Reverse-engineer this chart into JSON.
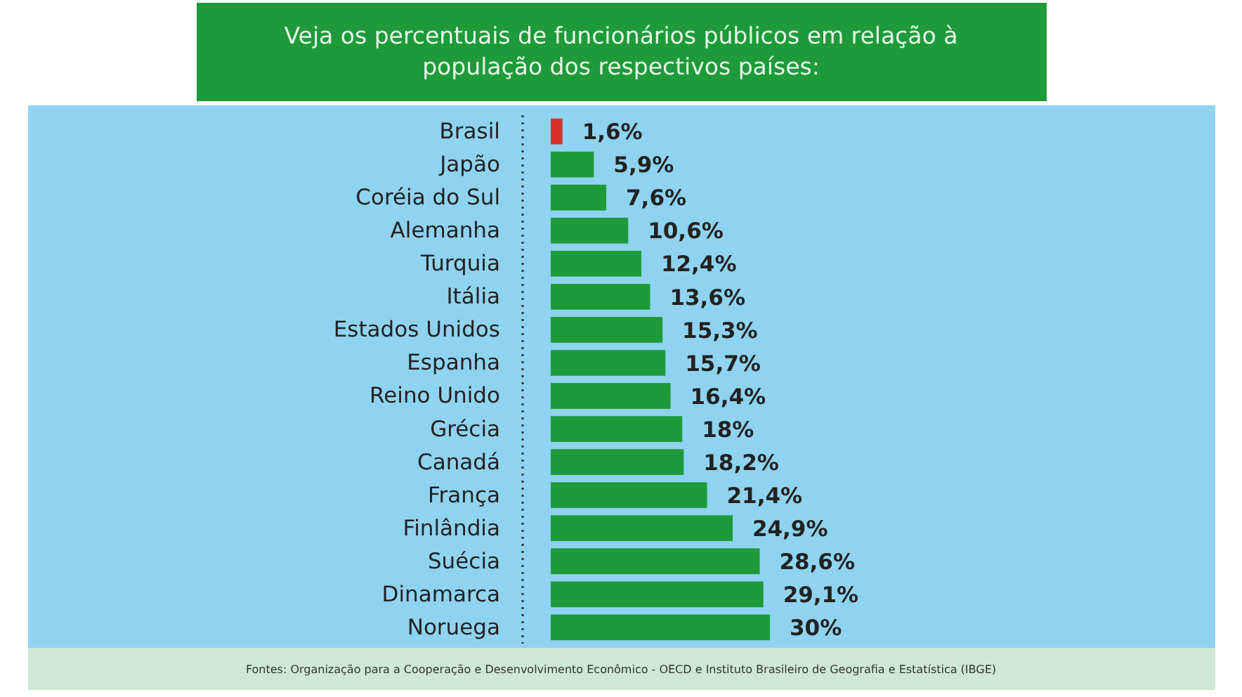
{
  "chart_data": {
    "type": "bar",
    "orientation": "horizontal",
    "title": "Veja os percentuais de funcionários públicos em relação à população dos respectivos países:",
    "categories": [
      "Brasil",
      "Japão",
      "Coréia do Sul",
      "Alemanha",
      "Turquia",
      "Itália",
      "Estados Unidos",
      "Espanha",
      "Reino Unido",
      "Grécia",
      "Canadá",
      "França",
      "Finlândia",
      "Suécia",
      "Dinamarca",
      "Noruega"
    ],
    "values": [
      1.6,
      5.9,
      7.6,
      10.6,
      12.4,
      13.6,
      15.3,
      15.7,
      16.4,
      18,
      18.2,
      21.4,
      24.9,
      28.6,
      29.1,
      30
    ],
    "value_labels": [
      "1,6%",
      "5,9%",
      "7,6%",
      "10,6%",
      "12,4%",
      "13,6%",
      "15,3%",
      "15,7%",
      "16,4%",
      "18%",
      "18,2%",
      "21,4%",
      "24,9%",
      "28,6%",
      "29,1%",
      "30%"
    ],
    "colors": [
      "#d9302c",
      "#1e9a3a",
      "#1e9a3a",
      "#1e9a3a",
      "#1e9a3a",
      "#1e9a3a",
      "#1e9a3a",
      "#1e9a3a",
      "#1e9a3a",
      "#1e9a3a",
      "#1e9a3a",
      "#1e9a3a",
      "#1e9a3a",
      "#1e9a3a",
      "#1e9a3a",
      "#1e9a3a"
    ],
    "annotations": [
      "Fontes: Organização para a Cooperação e Desenvolvimento Econômico - OECD e Instituto Brasileiro de Geografia e Estatística (IBGE)"
    ]
  }
}
